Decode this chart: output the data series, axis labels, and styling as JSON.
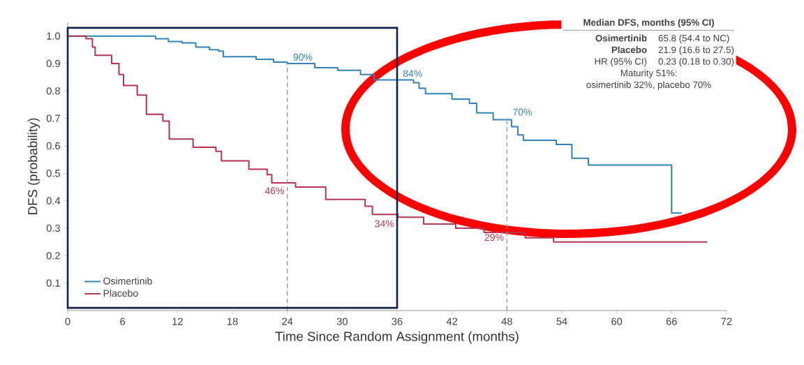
{
  "chart_data": {
    "type": "step",
    "xlabel": "Time Since Random Assignment (months)",
    "ylabel": "DFS (probability)",
    "series": [
      {
        "name": "Osimertinib",
        "color": "#2f84b5",
        "x": [
          0,
          9.6,
          11,
          12.5,
          14,
          15.5,
          16.5,
          17,
          20.6,
          22.5,
          24,
          27,
          29.5,
          32,
          33.5,
          37.8,
          38.4,
          39.1,
          42,
          43.9,
          44.7,
          46.5,
          48.5,
          49.2,
          49.8,
          53.4,
          55.1,
          56.9,
          66,
          67.1
        ],
        "values": [
          1.0,
          0.99,
          0.98,
          0.975,
          0.96,
          0.95,
          0.945,
          0.925,
          0.915,
          0.905,
          0.9,
          0.885,
          0.875,
          0.86,
          0.84,
          0.83,
          0.81,
          0.79,
          0.77,
          0.755,
          0.72,
          0.695,
          0.67,
          0.64,
          0.62,
          0.605,
          0.555,
          0.53,
          0.355,
          0.355
        ]
      },
      {
        "name": "Placebo",
        "color": "#b5344f",
        "x": [
          0,
          2.0,
          2.7,
          3.0,
          4.8,
          5.6,
          6.1,
          7.6,
          8.6,
          10.4,
          11.1,
          13.7,
          16.2,
          16.8,
          19.8,
          21.8,
          22.3,
          24.9,
          28.2,
          32.5,
          33.3,
          36.1,
          38.9,
          42.4,
          45.5,
          50.0,
          53.1,
          69.9
        ],
        "values": [
          1.0,
          0.99,
          0.96,
          0.93,
          0.9,
          0.86,
          0.82,
          0.785,
          0.715,
          0.69,
          0.625,
          0.595,
          0.58,
          0.545,
          0.515,
          0.495,
          0.465,
          0.45,
          0.405,
          0.38,
          0.35,
          0.34,
          0.315,
          0.3,
          0.285,
          0.265,
          0.25,
          0.25
        ]
      }
    ],
    "xlim": [
      0,
      72
    ],
    "ylim": [
      0,
      1.05
    ],
    "xticks": [
      0,
      6,
      12,
      18,
      24,
      30,
      36,
      42,
      48,
      54,
      60,
      66,
      72
    ],
    "yticks": [
      0.1,
      0.2,
      0.3,
      0.4,
      0.5,
      0.6,
      0.7,
      0.8,
      0.9,
      {
        "value": 1.0,
        "label": "1.0"
      }
    ],
    "legend": "bottom left",
    "ref_lines": [
      {
        "axis": "x",
        "value": 24,
        "color": "#9a9a9a",
        "line_style": "dashed"
      },
      {
        "axis": "x",
        "value": 48,
        "color": "#9a9a9a",
        "line_style": "dashed"
      }
    ],
    "annotations": [
      {
        "text": "90%",
        "x": 24,
        "y": 0.9
      },
      {
        "text": "84%",
        "x": 36,
        "y": 0.84
      },
      {
        "text": "70%",
        "x": 48,
        "y": 0.7
      },
      {
        "text": "46%",
        "x": 24,
        "y": 0.46
      },
      {
        "text": "34%",
        "x": 36,
        "y": 0.34
      },
      {
        "text": "29%",
        "x": 48,
        "y": 0.29
      },
      "Median DFS, months (95% CI)",
      "Osimertinib",
      "65.8 (54.4 to NC)",
      "Placebo",
      "21.9 (16.6 to 27.5)",
      "HR (95% CI)",
      "0.23 (0.18 to 0.30)",
      "Maturity 51%:",
      "osimertinib 32%, placebo 70%"
    ]
  }
}
